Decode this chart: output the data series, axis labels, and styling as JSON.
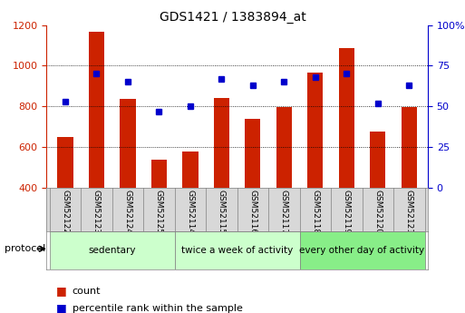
{
  "title": "GDS1421 / 1383894_at",
  "samples": [
    "GSM52122",
    "GSM52123",
    "GSM52124",
    "GSM52125",
    "GSM52114",
    "GSM52115",
    "GSM52116",
    "GSM52117",
    "GSM52118",
    "GSM52119",
    "GSM52120",
    "GSM52121"
  ],
  "counts": [
    650,
    1165,
    835,
    540,
    580,
    840,
    740,
    795,
    965,
    1085,
    675,
    795
  ],
  "percentiles": [
    53,
    70,
    65,
    47,
    50,
    67,
    63,
    65,
    68,
    70,
    52,
    63
  ],
  "ylim_left": [
    400,
    1200
  ],
  "ylim_right": [
    0,
    100
  ],
  "bar_color": "#cc2200",
  "dot_color": "#0000cc",
  "bar_width": 0.5,
  "bg_color": "#ffffff",
  "tick_color_left": "#cc2200",
  "tick_color_right": "#0000cc",
  "groups_def": [
    {
      "label": "sedentary",
      "start": 0,
      "end": 3,
      "color": "#ccffcc"
    },
    {
      "label": "twice a week of activity",
      "start": 4,
      "end": 7,
      "color": "#ccffcc"
    },
    {
      "label": "every other day of activity",
      "start": 8,
      "end": 11,
      "color": "#88ee88"
    }
  ],
  "legend_items": [
    {
      "label": "count",
      "color": "#cc2200"
    },
    {
      "label": "percentile rank within the sample",
      "color": "#0000cc"
    }
  ]
}
